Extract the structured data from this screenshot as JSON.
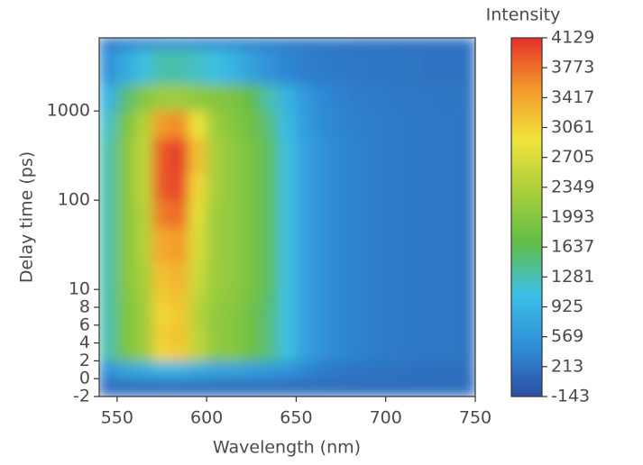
{
  "chart_data": {
    "type": "heatmap",
    "x_label": "Wavelength (nm)",
    "y_label": "Delay time (ps)",
    "xlim": [
      540,
      750
    ],
    "xticks": [
      550,
      600,
      650,
      700,
      750
    ],
    "ylim": [
      -2,
      6600
    ],
    "yscale": "symlog",
    "linthresh": 10,
    "yticks": [
      -2,
      0,
      2,
      4,
      6,
      8,
      10,
      100,
      1000
    ],
    "x_edges": [
      540,
      550,
      560,
      570,
      580,
      590,
      600,
      610,
      620,
      630,
      640,
      650,
      660,
      670,
      680,
      690,
      700,
      710,
      720,
      730,
      740,
      750
    ],
    "y_edges": [
      -2,
      0,
      2,
      4,
      6,
      8,
      10,
      20,
      50,
      100,
      200,
      500,
      1000,
      2000,
      5000,
      6600
    ],
    "z": [
      [
        150,
        150,
        150,
        150,
        150,
        150,
        150,
        150,
        150,
        150,
        150,
        150,
        150,
        150,
        150,
        150,
        150,
        150,
        150,
        150,
        150
      ],
      [
        500,
        700,
        800,
        900,
        900,
        800,
        700,
        700,
        650,
        600,
        500,
        400,
        300,
        250,
        220,
        200,
        200,
        180,
        180,
        170,
        170
      ],
      [
        1300,
        1900,
        2200,
        3000,
        3100,
        2500,
        2100,
        2000,
        1800,
        1500,
        1100,
        700,
        500,
        400,
        350,
        300,
        280,
        260,
        250,
        240,
        230
      ],
      [
        1300,
        1900,
        2200,
        3100,
        3200,
        2500,
        2100,
        2000,
        1800,
        1500,
        1100,
        700,
        500,
        400,
        350,
        300,
        280,
        260,
        250,
        240,
        230
      ],
      [
        1300,
        1900,
        2200,
        3000,
        3100,
        2400,
        2100,
        2000,
        1800,
        1500,
        1100,
        700,
        500,
        400,
        350,
        300,
        280,
        260,
        250,
        240,
        230
      ],
      [
        1300,
        1950,
        2250,
        3100,
        3200,
        2500,
        2150,
        2050,
        1850,
        1550,
        1100,
        700,
        500,
        400,
        350,
        300,
        280,
        260,
        250,
        240,
        230
      ],
      [
        1300,
        2000,
        2300,
        3200,
        3300,
        2600,
        2200,
        2100,
        1900,
        1600,
        1100,
        700,
        500,
        400,
        350,
        300,
        280,
        260,
        250,
        240,
        230
      ],
      [
        1300,
        2000,
        2400,
        3400,
        3500,
        2700,
        2200,
        2100,
        1900,
        1600,
        1100,
        700,
        500,
        400,
        350,
        300,
        280,
        260,
        250,
        240,
        230
      ],
      [
        1300,
        2000,
        2400,
        3700,
        3800,
        2800,
        2200,
        2100,
        1900,
        1600,
        1100,
        700,
        500,
        400,
        350,
        300,
        280,
        260,
        250,
        240,
        230
      ],
      [
        1300,
        2000,
        2500,
        3900,
        4000,
        3000,
        2300,
        2100,
        1900,
        1600,
        1100,
        700,
        500,
        400,
        350,
        300,
        280,
        260,
        250,
        240,
        230
      ],
      [
        1300,
        2000,
        2500,
        3900,
        4050,
        3200,
        2300,
        2100,
        1900,
        1600,
        1100,
        700,
        500,
        400,
        350,
        300,
        280,
        260,
        250,
        240,
        230
      ],
      [
        1200,
        1900,
        2400,
        3500,
        3600,
        2900,
        2200,
        2000,
        1800,
        1500,
        1000,
        650,
        450,
        380,
        330,
        300,
        280,
        260,
        250,
        240,
        230
      ],
      [
        900,
        1500,
        2000,
        2200,
        2200,
        2100,
        2000,
        1900,
        1700,
        1300,
        900,
        600,
        420,
        350,
        300,
        280,
        260,
        250,
        240,
        230,
        220
      ],
      [
        500,
        800,
        1100,
        1300,
        1300,
        1200,
        1100,
        900,
        700,
        500,
        400,
        320,
        280,
        260,
        240,
        230,
        220,
        210,
        200,
        200,
        200
      ],
      [
        250,
        300,
        350,
        400,
        400,
        380,
        350,
        320,
        300,
        280,
        260,
        240,
        220,
        210,
        200,
        200,
        200,
        190,
        190,
        180,
        180
      ]
    ],
    "colorscale": [
      "#2c4ea3",
      "#2f8fd8",
      "#3cc0e6",
      "#62bd48",
      "#a8cf3a",
      "#f1e33a",
      "#f39a2b",
      "#e5302b"
    ],
    "colorbar": {
      "title": "Intensity",
      "clim": [
        -143,
        4129
      ],
      "ticks": [
        -143,
        213,
        569,
        925,
        1281,
        1637,
        1993,
        2349,
        2705,
        3061,
        3417,
        3773,
        4129
      ]
    }
  }
}
